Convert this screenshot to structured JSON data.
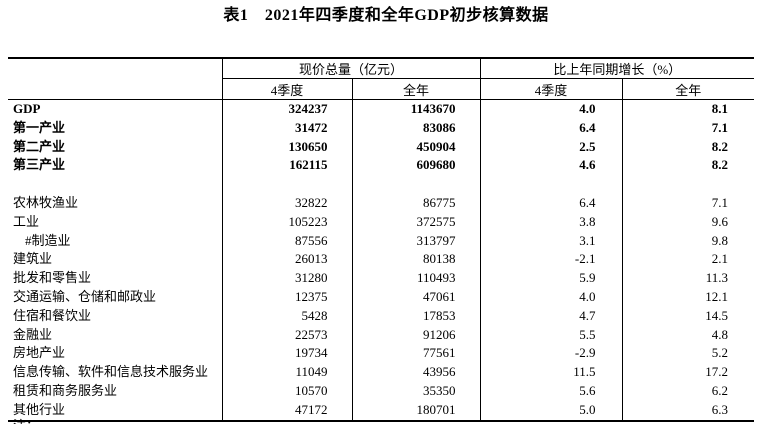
{
  "title": "表1　2021年四季度和全年GDP初步核算数据",
  "table": {
    "col_groups": [
      {
        "label": "现价总量（亿元）"
      },
      {
        "label": "比上年同期增长（%）"
      }
    ],
    "sub_headers": [
      "4季度",
      "全年",
      "4季度",
      "全年"
    ],
    "rows": [
      {
        "label": "GDP",
        "values": [
          "324237",
          "1143670",
          "4.0",
          "8.1"
        ],
        "bold": true
      },
      {
        "label": "第一产业",
        "values": [
          "31472",
          "83086",
          "6.4",
          "7.1"
        ],
        "bold": true
      },
      {
        "label": "第二产业",
        "values": [
          "130650",
          "450904",
          "2.5",
          "8.2"
        ],
        "bold": true
      },
      {
        "label": "第三产业",
        "values": [
          "162115",
          "609680",
          "4.6",
          "8.2"
        ],
        "bold": true
      },
      {
        "label": "",
        "values": [
          "",
          "",
          "",
          ""
        ],
        "spacer": true
      },
      {
        "label": "农林牧渔业",
        "values": [
          "32822",
          "86775",
          "6.4",
          "7.1"
        ]
      },
      {
        "label": "工业",
        "values": [
          "105223",
          "372575",
          "3.8",
          "9.6"
        ]
      },
      {
        "label": "#制造业",
        "values": [
          "87556",
          "313797",
          "3.1",
          "9.8"
        ],
        "indent": true
      },
      {
        "label": "建筑业",
        "values": [
          "26013",
          "80138",
          "-2.1",
          "2.1"
        ]
      },
      {
        "label": "批发和零售业",
        "values": [
          "31280",
          "110493",
          "5.9",
          "11.3"
        ]
      },
      {
        "label": "交通运输、仓储和邮政业",
        "values": [
          "12375",
          "47061",
          "4.0",
          "12.1"
        ]
      },
      {
        "label": "住宿和餐饮业",
        "values": [
          "5428",
          "17853",
          "4.7",
          "14.5"
        ]
      },
      {
        "label": "金融业",
        "values": [
          "22573",
          "91206",
          "5.5",
          "4.8"
        ]
      },
      {
        "label": "房地产业",
        "values": [
          "19734",
          "77561",
          "-2.9",
          "5.2"
        ]
      },
      {
        "label": "信息传输、软件和信息技术服务业",
        "values": [
          "11049",
          "43956",
          "11.5",
          "17.2"
        ]
      },
      {
        "label": "租赁和商务服务业",
        "values": [
          "10570",
          "35350",
          "5.6",
          "6.2"
        ]
      },
      {
        "label": "其他行业",
        "values": [
          "47172",
          "180701",
          "5.0",
          "6.3"
        ]
      }
    ],
    "footnote_partial": "注："
  }
}
